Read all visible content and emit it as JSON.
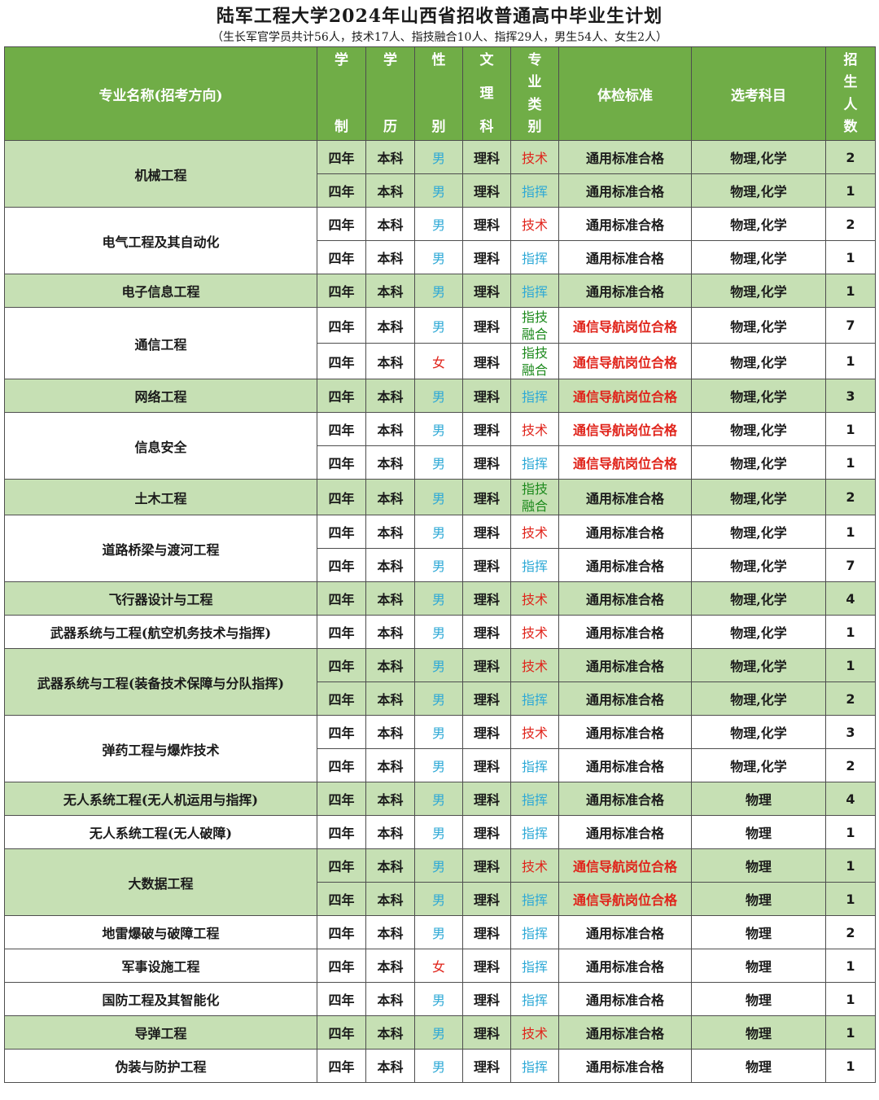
{
  "title": "陆军工程大学2024年山西省招收普通高中毕业生计划",
  "subtitle": "（生长军官学员共计56人，技术17人、指技融合10人、指挥29人，男生54人、女生2人）",
  "headers": {
    "name": "专业名称(招考方向)",
    "duration": [
      "学",
      "制"
    ],
    "degree": [
      "学",
      "历"
    ],
    "gender": [
      "性",
      "别"
    ],
    "track": [
      "文",
      "理",
      "科"
    ],
    "category": [
      "专",
      "业",
      "类",
      "别"
    ],
    "physical": "体检标准",
    "subjects": "选考科目",
    "count": [
      "招",
      "生",
      "人",
      "数"
    ]
  },
  "groups": [
    {
      "name": "机械工程",
      "shade": "g",
      "rows": [
        {
          "duration": "四年",
          "degree": "本科",
          "gender": "男",
          "track": "理科",
          "category": "技术",
          "physical": "通用标准合格",
          "subjects": "物理,化学",
          "count": "2"
        },
        {
          "duration": "四年",
          "degree": "本科",
          "gender": "男",
          "track": "理科",
          "category": "指挥",
          "physical": "通用标准合格",
          "subjects": "物理,化学",
          "count": "1"
        }
      ]
    },
    {
      "name": "电气工程及其自动化",
      "shade": "w",
      "rows": [
        {
          "duration": "四年",
          "degree": "本科",
          "gender": "男",
          "track": "理科",
          "category": "技术",
          "physical": "通用标准合格",
          "subjects": "物理,化学",
          "count": "2"
        },
        {
          "duration": "四年",
          "degree": "本科",
          "gender": "男",
          "track": "理科",
          "category": "指挥",
          "physical": "通用标准合格",
          "subjects": "物理,化学",
          "count": "1"
        }
      ]
    },
    {
      "name": "电子信息工程",
      "shade": "g",
      "rows": [
        {
          "duration": "四年",
          "degree": "本科",
          "gender": "男",
          "track": "理科",
          "category": "指挥",
          "physical": "通用标准合格",
          "subjects": "物理,化学",
          "count": "1"
        }
      ]
    },
    {
      "name": "通信工程",
      "shade": "w",
      "rows": [
        {
          "duration": "四年",
          "degree": "本科",
          "gender": "男",
          "track": "理科",
          "category": "指技融合",
          "physical": "通信导航岗位合格",
          "subjects": "物理,化学",
          "count": "7"
        },
        {
          "duration": "四年",
          "degree": "本科",
          "gender": "女",
          "track": "理科",
          "category": "指技融合",
          "physical": "通信导航岗位合格",
          "subjects": "物理,化学",
          "count": "1"
        }
      ]
    },
    {
      "name": "网络工程",
      "shade": "g",
      "rows": [
        {
          "duration": "四年",
          "degree": "本科",
          "gender": "男",
          "track": "理科",
          "category": "指挥",
          "physical": "通信导航岗位合格",
          "subjects": "物理,化学",
          "count": "3"
        }
      ]
    },
    {
      "name": "信息安全",
      "shade": "w",
      "rows": [
        {
          "duration": "四年",
          "degree": "本科",
          "gender": "男",
          "track": "理科",
          "category": "技术",
          "physical": "通信导航岗位合格",
          "subjects": "物理,化学",
          "count": "1"
        },
        {
          "duration": "四年",
          "degree": "本科",
          "gender": "男",
          "track": "理科",
          "category": "指挥",
          "physical": "通信导航岗位合格",
          "subjects": "物理,化学",
          "count": "1"
        }
      ]
    },
    {
      "name": "土木工程",
      "shade": "g",
      "rows": [
        {
          "duration": "四年",
          "degree": "本科",
          "gender": "男",
          "track": "理科",
          "category": "指技融合",
          "physical": "通用标准合格",
          "subjects": "物理,化学",
          "count": "2"
        }
      ]
    },
    {
      "name": "道路桥梁与渡河工程",
      "shade": "w",
      "rows": [
        {
          "duration": "四年",
          "degree": "本科",
          "gender": "男",
          "track": "理科",
          "category": "技术",
          "physical": "通用标准合格",
          "subjects": "物理,化学",
          "count": "1"
        },
        {
          "duration": "四年",
          "degree": "本科",
          "gender": "男",
          "track": "理科",
          "category": "指挥",
          "physical": "通用标准合格",
          "subjects": "物理,化学",
          "count": "7"
        }
      ]
    },
    {
      "name": "飞行器设计与工程",
      "shade": "g",
      "rows": [
        {
          "duration": "四年",
          "degree": "本科",
          "gender": "男",
          "track": "理科",
          "category": "技术",
          "physical": "通用标准合格",
          "subjects": "物理,化学",
          "count": "4"
        }
      ]
    },
    {
      "name": "武器系统与工程(航空机务技术与指挥)",
      "shade": "w",
      "rows": [
        {
          "duration": "四年",
          "degree": "本科",
          "gender": "男",
          "track": "理科",
          "category": "技术",
          "physical": "通用标准合格",
          "subjects": "物理,化学",
          "count": "1"
        }
      ]
    },
    {
      "name": "武器系统与工程(装备技术保障与分队指挥)",
      "shade": "g",
      "rows": [
        {
          "duration": "四年",
          "degree": "本科",
          "gender": "男",
          "track": "理科",
          "category": "技术",
          "physical": "通用标准合格",
          "subjects": "物理,化学",
          "count": "1"
        },
        {
          "duration": "四年",
          "degree": "本科",
          "gender": "男",
          "track": "理科",
          "category": "指挥",
          "physical": "通用标准合格",
          "subjects": "物理,化学",
          "count": "2"
        }
      ]
    },
    {
      "name": "弹药工程与爆炸技术",
      "shade": "w",
      "rows": [
        {
          "duration": "四年",
          "degree": "本科",
          "gender": "男",
          "track": "理科",
          "category": "技术",
          "physical": "通用标准合格",
          "subjects": "物理,化学",
          "count": "3"
        },
        {
          "duration": "四年",
          "degree": "本科",
          "gender": "男",
          "track": "理科",
          "category": "指挥",
          "physical": "通用标准合格",
          "subjects": "物理,化学",
          "count": "2"
        }
      ]
    },
    {
      "name": "无人系统工程(无人机运用与指挥)",
      "shade": "g",
      "rows": [
        {
          "duration": "四年",
          "degree": "本科",
          "gender": "男",
          "track": "理科",
          "category": "指挥",
          "physical": "通用标准合格",
          "subjects": "物理",
          "count": "4"
        }
      ]
    },
    {
      "name": "无人系统工程(无人破障)",
      "shade": "w",
      "rows": [
        {
          "duration": "四年",
          "degree": "本科",
          "gender": "男",
          "track": "理科",
          "category": "指挥",
          "physical": "通用标准合格",
          "subjects": "物理",
          "count": "1"
        }
      ]
    },
    {
      "name": "大数据工程",
      "shade": "g",
      "rows": [
        {
          "duration": "四年",
          "degree": "本科",
          "gender": "男",
          "track": "理科",
          "category": "技术",
          "physical": "通信导航岗位合格",
          "subjects": "物理",
          "count": "1"
        },
        {
          "duration": "四年",
          "degree": "本科",
          "gender": "男",
          "track": "理科",
          "category": "指挥",
          "physical": "通信导航岗位合格",
          "subjects": "物理",
          "count": "1"
        }
      ]
    },
    {
      "name": "地雷爆破与破障工程",
      "shade": "w",
      "rows": [
        {
          "duration": "四年",
          "degree": "本科",
          "gender": "男",
          "track": "理科",
          "category": "指挥",
          "physical": "通用标准合格",
          "subjects": "物理",
          "count": "2"
        }
      ]
    },
    {
      "name": "军事设施工程",
      "shade": "w",
      "rows": [
        {
          "duration": "四年",
          "degree": "本科",
          "gender": "女",
          "track": "理科",
          "category": "指挥",
          "physical": "通用标准合格",
          "subjects": "物理",
          "count": "1"
        }
      ]
    },
    {
      "name": "国防工程及其智能化",
      "shade": "w",
      "rows": [
        {
          "duration": "四年",
          "degree": "本科",
          "gender": "男",
          "track": "理科",
          "category": "指挥",
          "physical": "通用标准合格",
          "subjects": "物理",
          "count": "1"
        }
      ]
    },
    {
      "name": "导弹工程",
      "shade": "g",
      "rows": [
        {
          "duration": "四年",
          "degree": "本科",
          "gender": "男",
          "track": "理科",
          "category": "技术",
          "physical": "通用标准合格",
          "subjects": "物理",
          "count": "1"
        }
      ]
    },
    {
      "name": "伪装与防护工程",
      "shade": "w",
      "rows": [
        {
          "duration": "四年",
          "degree": "本科",
          "gender": "男",
          "track": "理科",
          "category": "指挥",
          "physical": "通用标准合格",
          "subjects": "物理",
          "count": "1"
        }
      ]
    }
  ]
}
